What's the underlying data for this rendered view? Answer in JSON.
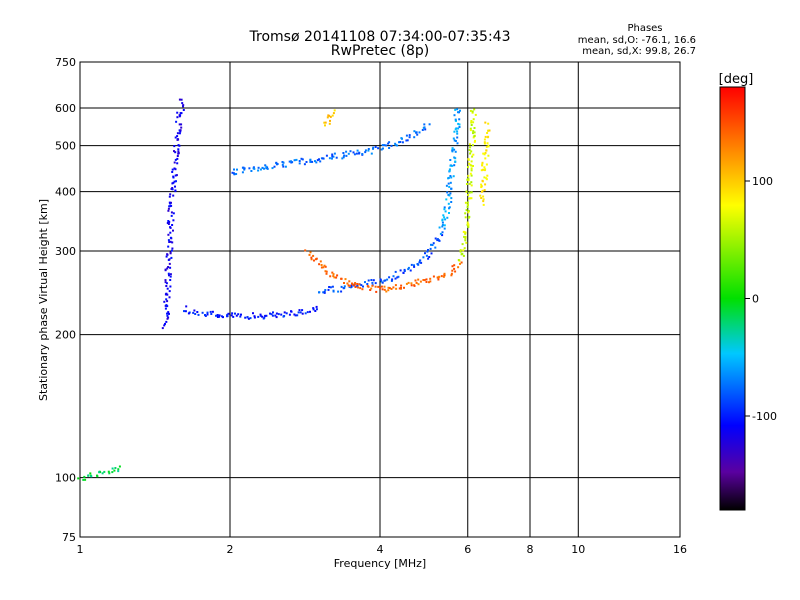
{
  "chart_data": {
    "type": "scatter",
    "title": "Tromsø 20141108 07:34:00-07:35:43",
    "subtitle": "RwPretec (8p)",
    "xlabel": "Frequency [MHz]",
    "ylabel": "Stationary phase Virtual Height [km]",
    "x_scale": "log",
    "y_scale": "log",
    "xlim": [
      1,
      16
    ],
    "ylim": [
      75,
      750
    ],
    "x_ticks": [
      1,
      2,
      4,
      6,
      8,
      10,
      16
    ],
    "x_tick_labels": [
      "1",
      "2",
      "4",
      "6",
      "8",
      "10",
      "16"
    ],
    "y_ticks": [
      75,
      100,
      200,
      300,
      400,
      500,
      600,
      750
    ],
    "y_tick_labels": [
      "75",
      "100",
      "200",
      "300",
      "400",
      "500",
      "600",
      "750"
    ],
    "grid": true,
    "stats": {
      "title": "Phases",
      "line_o": "mean, sd,O: -76.1, 16.6",
      "line_x": "mean, sd,X:  99.8, 26.7"
    },
    "colorbar": {
      "label": "[deg]",
      "range": [
        -180,
        180
      ],
      "ticks": [
        100,
        0,
        -100
      ],
      "tick_labels": [
        "100",
        "0",
        "-100"
      ]
    },
    "traces": [
      {
        "x": [
          1.48,
          1.5,
          1.52,
          1.55,
          1.57,
          1.6
        ],
        "y": [
          210,
          280,
          380,
          480,
          560,
          630
        ],
        "phase": -115
      },
      {
        "x": [
          1.62,
          1.72,
          1.85,
          2.0,
          2.2,
          2.45,
          2.75,
          3.0
        ],
        "y": [
          228,
          224,
          221,
          220,
          220,
          221,
          224,
          228
        ],
        "phase": -100
      },
      {
        "x": [
          2.0,
          2.3,
          2.6,
          3.0,
          3.4,
          3.8,
          4.2,
          4.6,
          5.0
        ],
        "y": [
          440,
          452,
          460,
          470,
          480,
          490,
          505,
          525,
          560
        ],
        "phase": -75
      },
      {
        "x": [
          3.0,
          3.4,
          3.8,
          4.2,
          4.6,
          5.0,
          5.3
        ],
        "y": [
          248,
          252,
          258,
          265,
          278,
          298,
          330
        ],
        "phase": -85
      },
      {
        "x": [
          5.3,
          5.45,
          5.55,
          5.65,
          5.72
        ],
        "y": [
          330,
          380,
          450,
          530,
          610
        ],
        "phase": -60
      },
      {
        "x": [
          2.85,
          3.1,
          3.4,
          3.7,
          4.0,
          4.5,
          5.0,
          5.5,
          5.8
        ],
        "y": [
          300,
          275,
          258,
          252,
          250,
          255,
          262,
          272,
          285
        ],
        "phase": 140
      },
      {
        "x": [
          5.8,
          5.95,
          6.05,
          6.15
        ],
        "y": [
          290,
          350,
          450,
          600
        ],
        "phase": 65
      },
      {
        "x": [
          6.4,
          6.45,
          6.5,
          6.55
        ],
        "y": [
          380,
          440,
          500,
          560
        ],
        "phase": 85
      },
      {
        "x": [
          1.0,
          1.05,
          1.1,
          1.15,
          1.2
        ],
        "y": [
          100,
          102,
          103,
          104,
          106
        ],
        "phase": -15
      },
      {
        "x": [
          3.1,
          3.15,
          3.2
        ],
        "y": [
          560,
          575,
          590
        ],
        "phase": 100
      }
    ]
  }
}
